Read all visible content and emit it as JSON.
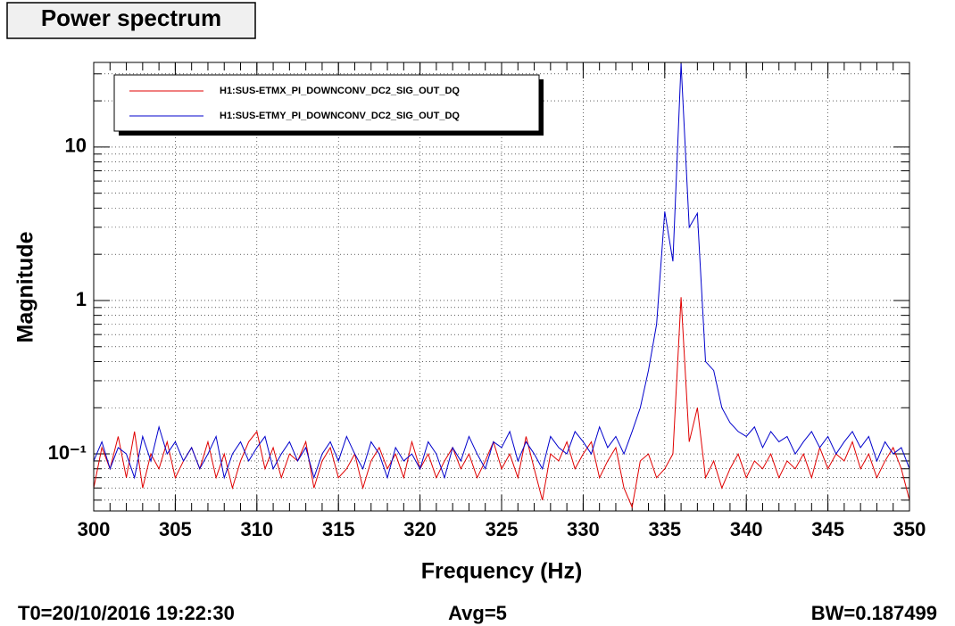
{
  "chart_data": {
    "type": "line",
    "title": "Power spectrum",
    "x_label": "Frequency (Hz)",
    "y_label": "Magnitude",
    "footer": {
      "t0": "T0=20/10/2016 19:22:30",
      "avg": "Avg=5",
      "bw": "BW=0.187499"
    },
    "ylog": true,
    "grid": true,
    "legend": "top-left",
    "xlim": [
      300,
      350
    ],
    "xticks": [
      300,
      305,
      310,
      315,
      320,
      325,
      330,
      335,
      340,
      345,
      350
    ],
    "ylim": [
      0.0425,
      35.6
    ],
    "yticks": [
      {
        "value": 0.1,
        "label": "10⁻¹"
      },
      1,
      10
    ],
    "x": [
      300,
      300.5,
      301,
      301.5,
      302,
      302.5,
      303,
      303.5,
      304,
      304.5,
      305,
      305.5,
      306,
      306.5,
      307,
      307.5,
      308,
      308.5,
      309,
      309.5,
      310,
      310.5,
      311,
      311.5,
      312,
      312.5,
      313,
      313.5,
      314,
      314.5,
      315,
      315.5,
      316,
      316.5,
      317,
      317.5,
      318,
      318.5,
      319,
      319.5,
      320,
      320.5,
      321,
      321.5,
      322,
      322.5,
      323,
      323.5,
      324,
      324.5,
      325,
      325.5,
      326,
      326.5,
      327,
      327.5,
      328,
      328.5,
      329,
      329.5,
      330,
      330.5,
      331,
      331.5,
      332,
      332.5,
      333,
      333.5,
      334,
      334.5,
      335,
      335.5,
      336,
      336.5,
      337,
      337.5,
      338,
      338.5,
      339,
      339.5,
      340,
      340.5,
      341,
      341.5,
      342,
      342.5,
      343,
      343.5,
      344,
      344.5,
      345,
      345.5,
      346,
      346.5,
      347,
      347.5,
      348,
      348.5,
      349,
      349.5,
      350
    ],
    "series": [
      {
        "name": "H1:SUS-ETMX_PI_DOWNCONV_DC2_SIG_OUT_DQ",
        "color": "#e00000",
        "values": [
          0.06,
          0.11,
          0.08,
          0.13,
          0.07,
          0.14,
          0.06,
          0.1,
          0.08,
          0.12,
          0.07,
          0.09,
          0.11,
          0.08,
          0.12,
          0.07,
          0.1,
          0.06,
          0.09,
          0.12,
          0.14,
          0.08,
          0.11,
          0.07,
          0.1,
          0.09,
          0.12,
          0.06,
          0.09,
          0.11,
          0.07,
          0.08,
          0.1,
          0.06,
          0.09,
          0.11,
          0.08,
          0.1,
          0.07,
          0.12,
          0.08,
          0.1,
          0.07,
          0.09,
          0.11,
          0.08,
          0.1,
          0.07,
          0.09,
          0.12,
          0.08,
          0.1,
          0.07,
          0.13,
          0.08,
          0.05,
          0.1,
          0.09,
          0.12,
          0.08,
          0.1,
          0.12,
          0.07,
          0.09,
          0.11,
          0.06,
          0.045,
          0.09,
          0.1,
          0.07,
          0.08,
          0.1,
          1.05,
          0.12,
          0.2,
          0.07,
          0.09,
          0.06,
          0.08,
          0.1,
          0.07,
          0.09,
          0.08,
          0.1,
          0.07,
          0.09,
          0.08,
          0.1,
          0.07,
          0.11,
          0.08,
          0.1,
          0.09,
          0.12,
          0.08,
          0.1,
          0.07,
          0.09,
          0.11,
          0.08,
          0.05
        ]
      },
      {
        "name": "H1:SUS-ETMY_PI_DOWNCONV_DC2_SIG_OUT_DQ",
        "color": "#0000cc",
        "values": [
          0.09,
          0.12,
          0.08,
          0.11,
          0.1,
          0.07,
          0.13,
          0.09,
          0.15,
          0.1,
          0.12,
          0.09,
          0.11,
          0.08,
          0.1,
          0.13,
          0.07,
          0.1,
          0.12,
          0.09,
          0.11,
          0.13,
          0.08,
          0.1,
          0.12,
          0.09,
          0.11,
          0.07,
          0.1,
          0.12,
          0.09,
          0.13,
          0.1,
          0.08,
          0.12,
          0.1,
          0.07,
          0.11,
          0.09,
          0.1,
          0.08,
          0.12,
          0.1,
          0.07,
          0.11,
          0.09,
          0.13,
          0.1,
          0.08,
          0.12,
          0.11,
          0.14,
          0.09,
          0.12,
          0.1,
          0.08,
          0.13,
          0.11,
          0.1,
          0.14,
          0.12,
          0.1,
          0.15,
          0.11,
          0.13,
          0.1,
          0.14,
          0.2,
          0.35,
          0.7,
          3.8,
          1.8,
          35,
          3.0,
          3.7,
          0.4,
          0.35,
          0.2,
          0.16,
          0.14,
          0.13,
          0.15,
          0.11,
          0.14,
          0.12,
          0.13,
          0.1,
          0.12,
          0.14,
          0.11,
          0.13,
          0.1,
          0.12,
          0.14,
          0.11,
          0.13,
          0.09,
          0.12,
          0.1,
          0.11,
          0.08
        ]
      }
    ]
  }
}
